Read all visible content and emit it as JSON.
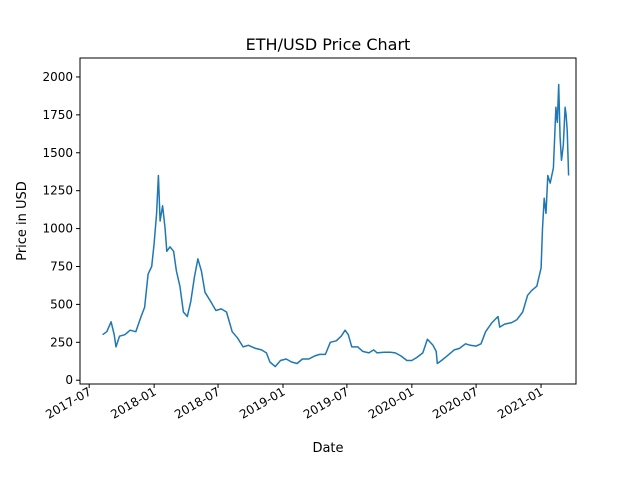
{
  "chart_data": {
    "type": "line",
    "title": "ETH/USD Price Chart",
    "xlabel": "Date",
    "ylabel": "Price in USD",
    "grid": false,
    "legend": "none",
    "line_color": "#1f77b4",
    "xlim": [
      "2017-06-05",
      "2021-04-10"
    ],
    "ylim": [
      -25,
      2125
    ],
    "x_ticks": [
      "2017-07",
      "2018-01",
      "2018-07",
      "2019-01",
      "2019-07",
      "2020-01",
      "2020-07",
      "2021-01"
    ],
    "y_ticks": [
      0,
      250,
      500,
      750,
      1000,
      1250,
      1500,
      1750,
      2000
    ],
    "series": [
      {
        "x": [
          "2017-08-08",
          "2017-08-20",
          "2017-09-01",
          "2017-09-10",
          "2017-09-15",
          "2017-09-25",
          "2017-10-10",
          "2017-10-25",
          "2017-11-10",
          "2017-11-25",
          "2017-12-05",
          "2017-12-15",
          "2017-12-25",
          "2018-01-01",
          "2018-01-08",
          "2018-01-13",
          "2018-01-18",
          "2018-01-25",
          "2018-02-01",
          "2018-02-06",
          "2018-02-15",
          "2018-02-25",
          "2018-03-05",
          "2018-03-15",
          "2018-03-25",
          "2018-04-05",
          "2018-04-15",
          "2018-04-25",
          "2018-05-05",
          "2018-05-15",
          "2018-05-25",
          "2018-06-10",
          "2018-06-25",
          "2018-07-10",
          "2018-07-25",
          "2018-08-10",
          "2018-08-25",
          "2018-09-10",
          "2018-09-25",
          "2018-10-15",
          "2018-11-01",
          "2018-11-15",
          "2018-11-25",
          "2018-12-10",
          "2018-12-25",
          "2019-01-10",
          "2019-01-25",
          "2019-02-10",
          "2019-02-25",
          "2019-03-15",
          "2019-04-01",
          "2019-04-15",
          "2019-05-01",
          "2019-05-15",
          "2019-06-01",
          "2019-06-15",
          "2019-06-26",
          "2019-07-05",
          "2019-07-15",
          "2019-08-01",
          "2019-08-15",
          "2019-09-01",
          "2019-09-15",
          "2019-09-25",
          "2019-10-15",
          "2019-11-01",
          "2019-11-15",
          "2019-12-01",
          "2019-12-18",
          "2020-01-01",
          "2020-01-15",
          "2020-02-01",
          "2020-02-14",
          "2020-03-01",
          "2020-03-10",
          "2020-03-13",
          "2020-03-25",
          "2020-04-10",
          "2020-04-30",
          "2020-05-15",
          "2020-06-01",
          "2020-06-15",
          "2020-07-01",
          "2020-07-15",
          "2020-07-28",
          "2020-08-15",
          "2020-09-01",
          "2020-09-06",
          "2020-09-20",
          "2020-10-10",
          "2020-10-25",
          "2020-11-10",
          "2020-11-24",
          "2020-12-05",
          "2020-12-20",
          "2021-01-01",
          "2021-01-05",
          "2021-01-10",
          "2021-01-15",
          "2021-01-20",
          "2021-01-27",
          "2021-02-05",
          "2021-02-12",
          "2021-02-16",
          "2021-02-20",
          "2021-02-24",
          "2021-02-28",
          "2021-03-05",
          "2021-03-10",
          "2021-03-13",
          "2021-03-16",
          "2021-03-20"
        ],
        "values": [
          300,
          320,
          385,
          300,
          220,
          290,
          300,
          330,
          320,
          420,
          480,
          700,
          750,
          900,
          1100,
          1350,
          1050,
          1150,
          1000,
          850,
          880,
          850,
          720,
          620,
          450,
          420,
          520,
          680,
          800,
          720,
          580,
          520,
          460,
          470,
          450,
          320,
          280,
          220,
          230,
          210,
          200,
          180,
          120,
          90,
          130,
          140,
          120,
          110,
          140,
          140,
          160,
          170,
          170,
          250,
          260,
          290,
          330,
          300,
          220,
          220,
          190,
          180,
          200,
          180,
          185,
          185,
          180,
          160,
          130,
          130,
          150,
          180,
          270,
          230,
          190,
          110,
          130,
          160,
          200,
          210,
          240,
          230,
          225,
          240,
          320,
          380,
          420,
          350,
          370,
          380,
          400,
          450,
          560,
          590,
          620,
          740,
          1000,
          1200,
          1100,
          1350,
          1300,
          1400,
          1800,
          1700,
          1950,
          1600,
          1450,
          1550,
          1800,
          1750,
          1650,
          1350
        ]
      }
    ]
  }
}
